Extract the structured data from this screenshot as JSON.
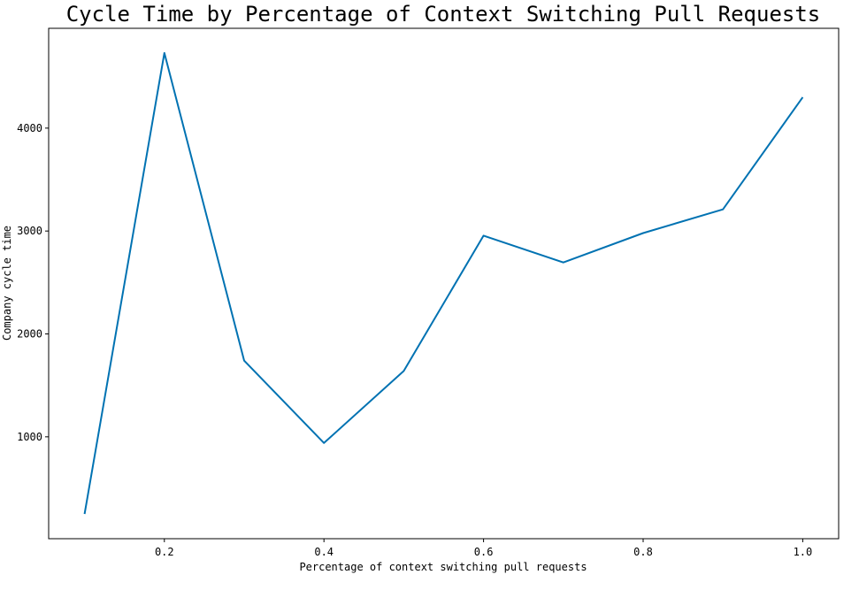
{
  "chart_data": {
    "type": "line",
    "title": "Cycle Time by Percentage of Context Switching Pull Requests",
    "xlabel": "Percentage of context switching pull requests",
    "ylabel": "Company cycle time",
    "x": [
      0.1,
      0.2,
      0.3,
      0.4,
      0.5,
      0.6,
      0.7,
      0.8,
      0.9,
      1.0
    ],
    "series": [
      {
        "values": [
          250,
          4730,
          1740,
          940,
          1640,
          2955,
          2695,
          2980,
          3210,
          4300
        ],
        "color": "#0072B2"
      }
    ],
    "xlim": [
      0.055,
      1.045
    ],
    "ylim": [
      10,
      4970
    ],
    "xticks": [
      0.2,
      0.4,
      0.6,
      0.8,
      1.0
    ],
    "xtick_labels": [
      "0.2",
      "0.4",
      "0.6",
      "0.8",
      "1.0"
    ],
    "yticks": [
      1000,
      2000,
      3000,
      4000
    ],
    "ytick_labels": [
      "1000",
      "2000",
      "3000",
      "4000"
    ],
    "grid": false,
    "legend": "none"
  }
}
